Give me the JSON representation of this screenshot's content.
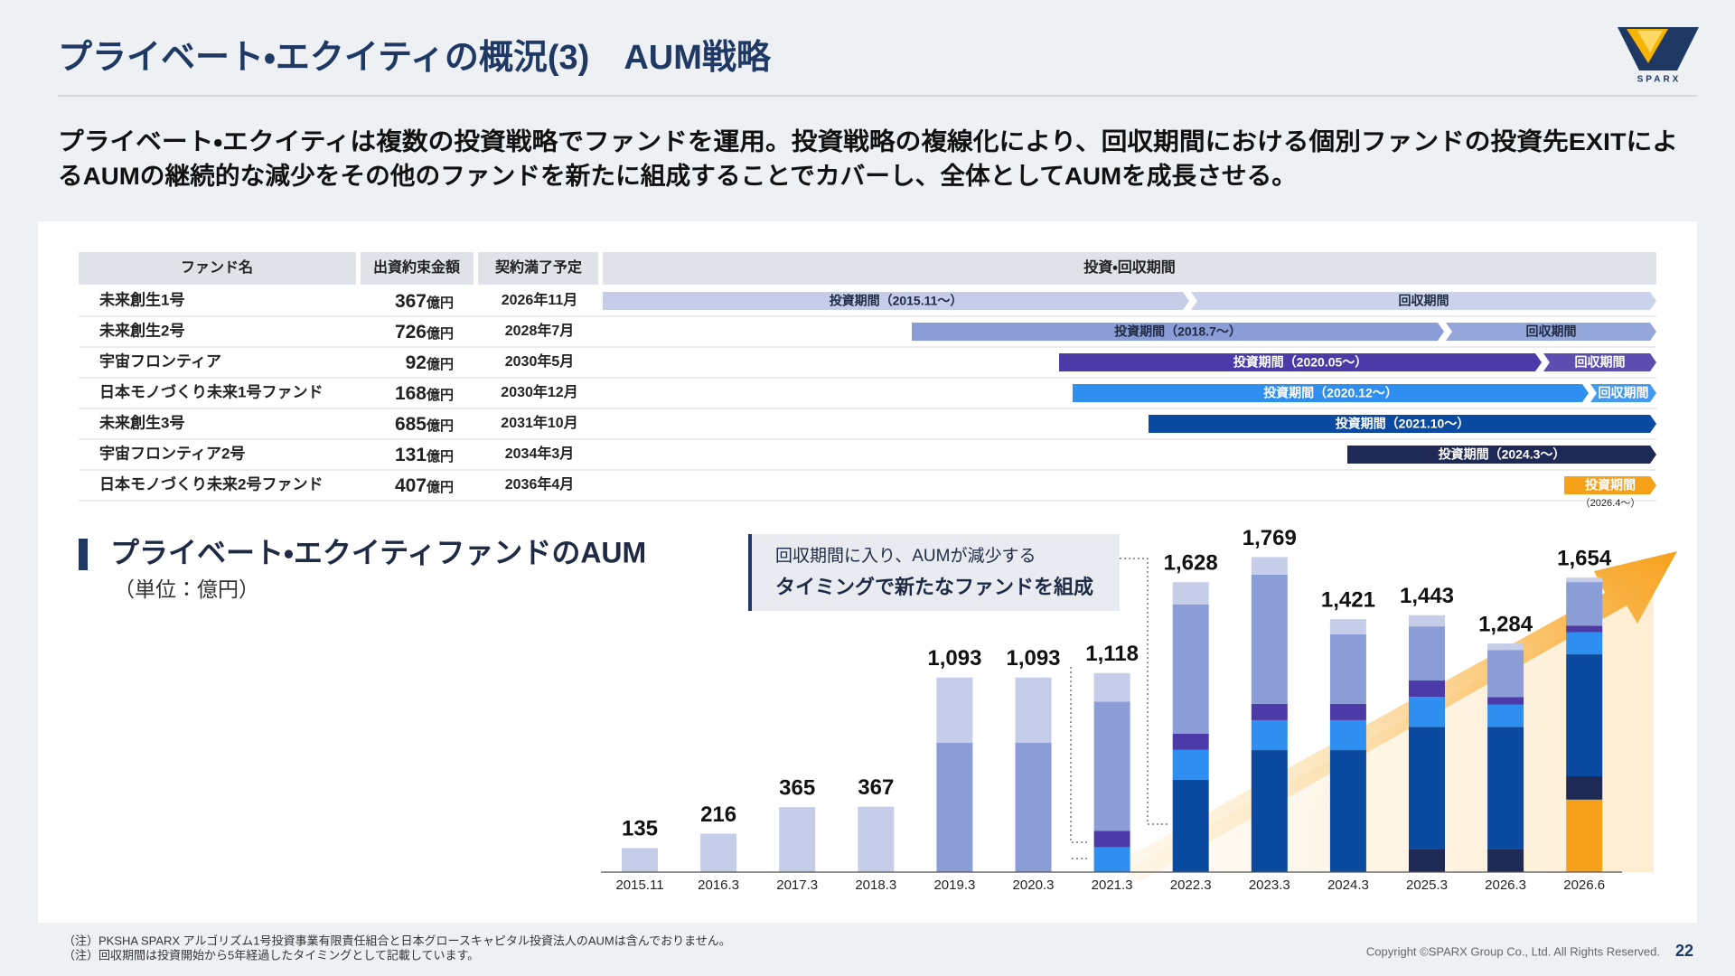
{
  "header": {
    "title": "プライベート・エクイティの概況(3)　AUM戦略",
    "logo": "SPARX"
  },
  "lead": [
    "プライベート・エクイティは複数の投資戦略でファンドを運用。投資戦略の複線化により、回収期間における個別ファンドの投資先EXITによ",
    "るAUMの継続的な減少をその他のファンドを新たに組成することでカバーし、全体としてAUMを成長させる。"
  ],
  "table": {
    "columns": [
      "ファンド名",
      "出資約束金額",
      "契約満了予定",
      "投資・回収期間"
    ],
    "amount_unit": "億円",
    "rows": [
      {
        "name": "未来創生1号",
        "amount": 367,
        "end": "2026年11月",
        "periods": [
          {
            "label": "投資期間（2015.11～）"
          },
          {
            "label": "回収期間"
          }
        ]
      },
      {
        "name": "未来創生2号",
        "amount": 726,
        "end": "2028年7月",
        "periods": [
          {
            "label": "投資期間（2018.7～）"
          },
          {
            "label": "回収期間"
          }
        ]
      },
      {
        "name": "宇宙フロンティア",
        "amount": 92,
        "end": "2030年5月",
        "periods": [
          {
            "label": "投資期間（2020.05～）"
          },
          {
            "label": "回収期間"
          }
        ]
      },
      {
        "name": "日本モノづくり未来1号ファンド",
        "amount": 168,
        "end": "2030年12月",
        "periods": [
          {
            "label": "投資期間（2020.12～）"
          },
          {
            "label": "回収期間"
          }
        ]
      },
      {
        "name": "未来創生3号",
        "amount": 685,
        "end": "2031年10月",
        "periods": [
          {
            "label": "投資期間（2021.10～）"
          }
        ]
      },
      {
        "name": "宇宙フロンティア2号",
        "amount": 131,
        "end": "2034年3月",
        "periods": [
          {
            "label": "投資期間（2024.3～）"
          }
        ]
      },
      {
        "name": "日本モノづくり未来2号ファンド",
        "amount": 407,
        "end": "2036年4月",
        "periods": [
          {
            "label": "投資期間",
            "sub": "（2026.4～）"
          }
        ]
      }
    ]
  },
  "chart_data": {
    "type": "stacked-bar",
    "title": "プライベート・エクイティファンドのAUM",
    "subtitle": "（単位：億円）",
    "annotation": [
      "回収期間に入り、AUMが減少する",
      "タイミングで新たなファンドを組成"
    ],
    "categories": [
      "2015.11",
      "2016.3",
      "2017.3",
      "2018.3",
      "2019.3",
      "2020.3",
      "2021.3",
      "2022.3",
      "2023.3",
      "2024.3",
      "2025.3",
      "2026.3",
      "2026.6"
    ],
    "series": [
      {
        "color": "#c5cde9",
        "values": [
          135,
          216,
          365,
          367,
          367,
          367,
          160,
          124,
          98,
          85,
          63,
          37,
          25
        ]
      },
      {
        "color": "#8a9dd6",
        "values": [
          null,
          null,
          null,
          null,
          726,
          726,
          726,
          726,
          726,
          391,
          304,
          264,
          245
        ]
      },
      {
        "color": "#4b3aa8",
        "values": [
          null,
          null,
          null,
          null,
          null,
          null,
          92,
          92,
          92,
          92,
          92,
          43,
          37
        ]
      },
      {
        "color": "#2f8ff0",
        "values": [
          null,
          null,
          null,
          null,
          null,
          null,
          140,
          168,
          168,
          168,
          168,
          124,
          124
        ]
      },
      {
        "color": "#0a4aa0",
        "values": [
          null,
          null,
          null,
          null,
          null,
          null,
          null,
          518,
          685,
          685,
          685,
          685,
          685
        ]
      },
      {
        "color": "#1e2a55",
        "values": [
          null,
          null,
          null,
          null,
          null,
          null,
          null,
          null,
          null,
          null,
          131,
          131,
          131
        ]
      },
      {
        "color": "#f7a01a",
        "values": [
          null,
          null,
          null,
          null,
          null,
          null,
          null,
          null,
          null,
          null,
          null,
          null,
          407
        ]
      }
    ],
    "totals": [
      135,
      216,
      365,
      367,
      1093,
      1093,
      1118,
      1628,
      1769,
      1421,
      1443,
      1284,
      1654
    ],
    "total_labels": [
      "135",
      "216",
      "365",
      "367",
      "1,093",
      "1,093",
      "1,118",
      "1,628",
      "1,769",
      "1,421",
      "1,443",
      "1,284",
      "1,654"
    ],
    "ylim": [
      0,
      2000
    ]
  },
  "footer": {
    "notes": [
      "（注）PKSHA SPARX アルゴリズム1号投資事業有限責任組合と日本グロースキャピタル投資法人のAUMは含んでおりません。",
      "（注）回収期間は投資開始から5年経過したタイミングとして記載しています。"
    ],
    "copyright": "Copyright ©SPARX Group Co., Ltd. All Rights Reserved.",
    "page": 22
  }
}
